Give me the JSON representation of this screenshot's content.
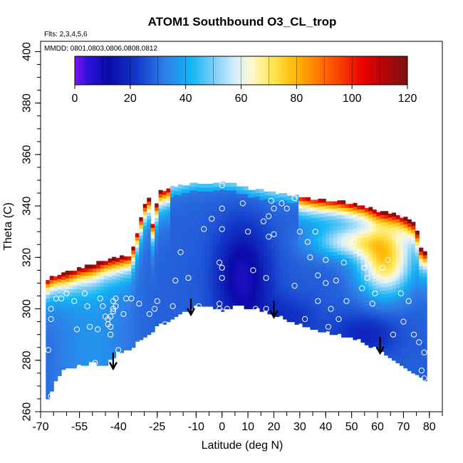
{
  "chart_data": {
    "type": "heatmap",
    "title": "ATOM1 Southbound O3_CL_trop",
    "subtitle_flights": "Flts: 2,3,4,5,6",
    "subtitle_dates": "MMDD: 0801,0803,0806,0808,0812",
    "xlabel": "Latitude (deg N)",
    "ylabel": "Theta (C)",
    "xlim": [
      -70,
      85
    ],
    "ylim": [
      260,
      404
    ],
    "x_ticks": [
      -70,
      -55,
      -40,
      -25,
      -10,
      0,
      10,
      20,
      30,
      40,
      50,
      60,
      70,
      80
    ],
    "y_ticks": [
      260,
      280,
      300,
      320,
      340,
      360,
      380,
      400
    ],
    "colorbar": {
      "range": [
        0,
        120
      ],
      "ticks": [
        0,
        20,
        40,
        60,
        80,
        100,
        120
      ],
      "stops": [
        {
          "v": 0,
          "c": "#7a16f2"
        },
        {
          "v": 5,
          "c": "#2a12d8"
        },
        {
          "v": 12,
          "c": "#0a0aa8"
        },
        {
          "v": 22,
          "c": "#1236c8"
        },
        {
          "v": 32,
          "c": "#2f7be6"
        },
        {
          "v": 42,
          "c": "#12b5f5"
        },
        {
          "v": 50,
          "c": "#7ccef5"
        },
        {
          "v": 58,
          "c": "#d8efff"
        },
        {
          "v": 64,
          "c": "#fff8cc"
        },
        {
          "v": 72,
          "c": "#ffe34a"
        },
        {
          "v": 80,
          "c": "#ffb400"
        },
        {
          "v": 92,
          "c": "#ff5a00"
        },
        {
          "v": 104,
          "c": "#e80000"
        },
        {
          "v": 120,
          "c": "#7a1010"
        }
      ]
    },
    "field_domain": {
      "lower_boundary": [
        [
          -68,
          264
        ],
        [
          -66,
          268
        ],
        [
          -64,
          273
        ],
        [
          -60,
          277
        ],
        [
          -55,
          278
        ],
        [
          -50,
          279
        ],
        [
          -45,
          278
        ],
        [
          -40,
          283
        ],
        [
          -35,
          285
        ],
        [
          -30,
          289
        ],
        [
          -25,
          293
        ],
        [
          -20,
          296
        ],
        [
          -15,
          299
        ],
        [
          -10,
          301
        ],
        [
          -5,
          301.5
        ],
        [
          0,
          299.5
        ],
        [
          5,
          301
        ],
        [
          10,
          300.5
        ],
        [
          15,
          299.5
        ],
        [
          20,
          298
        ],
        [
          25,
          296
        ],
        [
          30,
          294
        ],
        [
          35,
          292.5
        ],
        [
          40,
          291
        ],
        [
          45,
          290
        ],
        [
          50,
          289
        ],
        [
          55,
          287
        ],
        [
          60,
          284
        ],
        [
          65,
          281
        ],
        [
          70,
          278
        ],
        [
          75,
          274
        ],
        [
          78,
          272
        ]
      ],
      "upper_boundary": [
        [
          78,
          298
        ],
        [
          78,
          310
        ],
        [
          77,
          322
        ],
        [
          76,
          328
        ],
        [
          74,
          333
        ],
        [
          71,
          335
        ],
        [
          68,
          336.5
        ],
        [
          65,
          337
        ],
        [
          60,
          338
        ],
        [
          55,
          340
        ],
        [
          50,
          341
        ],
        [
          45,
          342
        ],
        [
          40,
          342.5
        ],
        [
          35,
          343
        ],
        [
          30,
          344
        ],
        [
          25,
          344.5
        ],
        [
          20,
          345
        ],
        [
          15,
          346
        ],
        [
          10,
          347
        ],
        [
          5,
          348.5
        ],
        [
          0,
          349
        ],
        [
          -5,
          349
        ],
        [
          -10,
          349
        ],
        [
          -15,
          348
        ],
        [
          -20,
          347
        ],
        [
          -25,
          345
        ],
        [
          -28,
          343
        ],
        [
          -30,
          340
        ],
        [
          -28,
          334
        ],
        [
          -26,
          327
        ],
        [
          -25,
          323
        ],
        [
          -30,
          322
        ],
        [
          -35,
          321
        ],
        [
          -40,
          320
        ],
        [
          -45,
          319
        ],
        [
          -50,
          317
        ],
        [
          -55,
          316
        ],
        [
          -60,
          314
        ],
        [
          -65,
          313
        ],
        [
          -68,
          311
        ],
        [
          -68,
          305
        ],
        [
          -68,
          290
        ],
        [
          -68,
          275
        ],
        [
          -68,
          264
        ]
      ]
    },
    "field_features": [
      {
        "name": "stratospheric-rim-ozone",
        "value": 110,
        "location": "upper boundary"
      },
      {
        "name": "tropical-minimum",
        "value": 10,
        "x": 8,
        "y": 318
      },
      {
        "name": "northern-upper-enhancement",
        "value": 75,
        "x": 64,
        "y": 317
      },
      {
        "name": "southern-background",
        "value": 30,
        "x": -50,
        "y": 292
      }
    ],
    "sample_points": [
      [
        -67,
        284
      ],
      [
        -66,
        296
      ],
      [
        -66,
        300
      ],
      [
        -66,
        266
      ],
      [
        -64,
        304
      ],
      [
        -62,
        304
      ],
      [
        -60,
        306
      ],
      [
        -57,
        303
      ],
      [
        -56,
        292
      ],
      [
        -55,
        277
      ],
      [
        -53,
        306
      ],
      [
        -52,
        301
      ],
      [
        -51,
        293
      ],
      [
        -49,
        279
      ],
      [
        -48,
        292
      ],
      [
        -47,
        304
      ],
      [
        -46,
        301
      ],
      [
        -45,
        297
      ],
      [
        -44,
        296
      ],
      [
        -44,
        294
      ],
      [
        -43,
        293
      ],
      [
        -43,
        297
      ],
      [
        -43,
        290
      ],
      [
        -42,
        299
      ],
      [
        -42,
        300
      ],
      [
        -42,
        303
      ],
      [
        -41,
        301
      ],
      [
        -41,
        304
      ],
      [
        -40,
        284
      ],
      [
        -38,
        298
      ],
      [
        -37,
        304
      ],
      [
        -35,
        304
      ],
      [
        -32,
        302
      ],
      [
        -28,
        298
      ],
      [
        -26,
        300
      ],
      [
        -25,
        303
      ],
      [
        -22,
        294
      ],
      [
        -19,
        301
      ],
      [
        -18,
        311
      ],
      [
        -16,
        322
      ],
      [
        -13,
        312
      ],
      [
        -9,
        301
      ],
      [
        -7,
        331
      ],
      [
        -4,
        335
      ],
      [
        -1,
        318
      ],
      [
        -1,
        302
      ],
      [
        -1,
        300
      ],
      [
        0,
        348
      ],
      [
        0,
        339
      ],
      [
        0,
        331
      ],
      [
        0,
        316
      ],
      [
        0,
        312
      ],
      [
        0,
        299
      ],
      [
        2,
        300
      ],
      [
        6,
        300
      ],
      [
        8,
        341
      ],
      [
        10,
        330
      ],
      [
        12,
        315
      ],
      [
        13,
        300
      ],
      [
        16,
        334
      ],
      [
        17,
        312
      ],
      [
        17,
        300
      ],
      [
        18,
        328
      ],
      [
        18,
        336
      ],
      [
        19,
        342
      ],
      [
        20,
        339
      ],
      [
        20,
        329
      ],
      [
        22,
        346
      ],
      [
        23,
        341
      ],
      [
        25,
        339
      ],
      [
        28,
        343
      ],
      [
        28,
        309
      ],
      [
        30,
        330
      ],
      [
        32,
        296
      ],
      [
        33,
        326
      ],
      [
        34,
        320
      ],
      [
        36,
        330
      ],
      [
        37,
        313
      ],
      [
        37,
        303
      ],
      [
        40,
        310
      ],
      [
        40,
        319
      ],
      [
        41,
        293
      ],
      [
        42,
        300
      ],
      [
        44,
        311
      ],
      [
        45,
        296
      ],
      [
        47,
        318
      ],
      [
        48,
        303
      ],
      [
        51,
        326
      ],
      [
        53,
        322
      ],
      [
        54,
        308
      ],
      [
        55,
        316
      ],
      [
        56,
        312
      ],
      [
        58,
        302
      ],
      [
        59,
        306
      ],
      [
        62,
        316
      ],
      [
        64,
        319
      ],
      [
        66,
        290
      ],
      [
        69,
        306
      ],
      [
        70,
        295
      ],
      [
        72,
        303
      ],
      [
        74,
        290
      ],
      [
        76,
        287
      ],
      [
        77,
        276
      ],
      [
        78,
        273
      ],
      [
        78,
        283
      ]
    ],
    "arrows": [
      {
        "x": -42,
        "y_from": 283,
        "y_to": 277
      },
      {
        "x": -12,
        "y_from": 304,
        "y_to": 298
      },
      {
        "x": 20,
        "y_from": 303,
        "y_to": 297
      },
      {
        "x": 61,
        "y_from": 289,
        "y_to": 283
      }
    ]
  }
}
